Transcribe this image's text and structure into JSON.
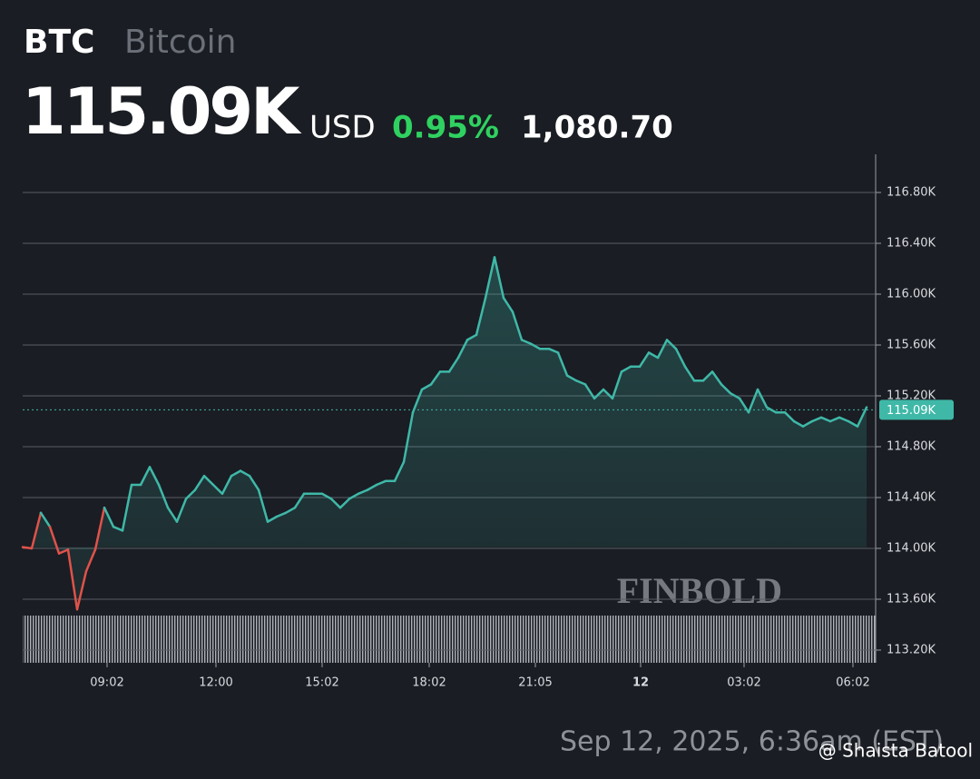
{
  "header": {
    "symbol": "BTC",
    "name": "Bitcoin",
    "currency": "USD",
    "change_pct": "0.95%",
    "change": "1,080.70"
  },
  "chart_data": {
    "type": "line",
    "series": [
      {
        "name": "BTC",
        "color": "#3fb8a8",
        "down_color": "#e0524a",
        "values": [
          114.01,
          114.0,
          114.28,
          114.17,
          113.96,
          113.99,
          113.52,
          113.82,
          113.99,
          114.32,
          114.17,
          114.14,
          114.5,
          114.5,
          114.64,
          114.5,
          114.32,
          114.21,
          114.39,
          114.46,
          114.57,
          114.5,
          114.43,
          114.57,
          114.61,
          114.57,
          114.46,
          114.21,
          114.25,
          114.28,
          114.32,
          114.43,
          114.43,
          114.43,
          114.39,
          114.32,
          114.39,
          114.43,
          114.46,
          114.5,
          114.53,
          114.53,
          114.68,
          115.07,
          115.25,
          115.29,
          115.39,
          115.39,
          115.5,
          115.64,
          115.68,
          115.97,
          116.29,
          115.97,
          115.86,
          115.64,
          115.61,
          115.57,
          115.57,
          115.54,
          115.36,
          115.32,
          115.29,
          115.18,
          115.25,
          115.18,
          115.39,
          115.43,
          115.43,
          115.54,
          115.5,
          115.64,
          115.57,
          115.43,
          115.32,
          115.32,
          115.39,
          115.29,
          115.22,
          115.18,
          115.07,
          115.25,
          115.11,
          115.07,
          115.07,
          115.0,
          114.96,
          115.0,
          115.03,
          115.0,
          115.03,
          115.0,
          114.96,
          115.11
        ]
      }
    ],
    "last_value": {
      "value": 115.09,
      "label": "115.09K"
    },
    "ylim": [
      113.1,
      117.1
    ],
    "yticks": [
      {
        "value": 113.2,
        "label": "113.20K"
      },
      {
        "value": 113.6,
        "label": "113.60K"
      },
      {
        "value": 114.0,
        "label": "114.00K"
      },
      {
        "value": 114.4,
        "label": "114.40K"
      },
      {
        "value": 114.8,
        "label": "114.80K"
      },
      {
        "value": 115.2,
        "label": "115.20K"
      },
      {
        "value": 115.6,
        "label": "115.60K"
      },
      {
        "value": 116.0,
        "label": "116.00K"
      },
      {
        "value": 116.4,
        "label": "116.40K"
      },
      {
        "value": 116.8,
        "label": "116.80K"
      }
    ],
    "xlim": [
      0,
      94
    ],
    "xticks": [
      {
        "value": 9.3,
        "label": "09:02"
      },
      {
        "value": 21.3,
        "label": "12:00"
      },
      {
        "value": 33,
        "label": "15:02"
      },
      {
        "value": 44.8,
        "label": "18:02"
      },
      {
        "value": 56.5,
        "label": "21:05"
      },
      {
        "value": 68.1,
        "label": "12"
      },
      {
        "value": 79.5,
        "label": "03:02"
      },
      {
        "value": 91.5,
        "label": "06:02"
      }
    ],
    "grid": true,
    "watermark": "FINBOLD",
    "timestamp": "Sep 12, 2025, 6:36am (EST)"
  },
  "credit": "@ Shaista Batool"
}
